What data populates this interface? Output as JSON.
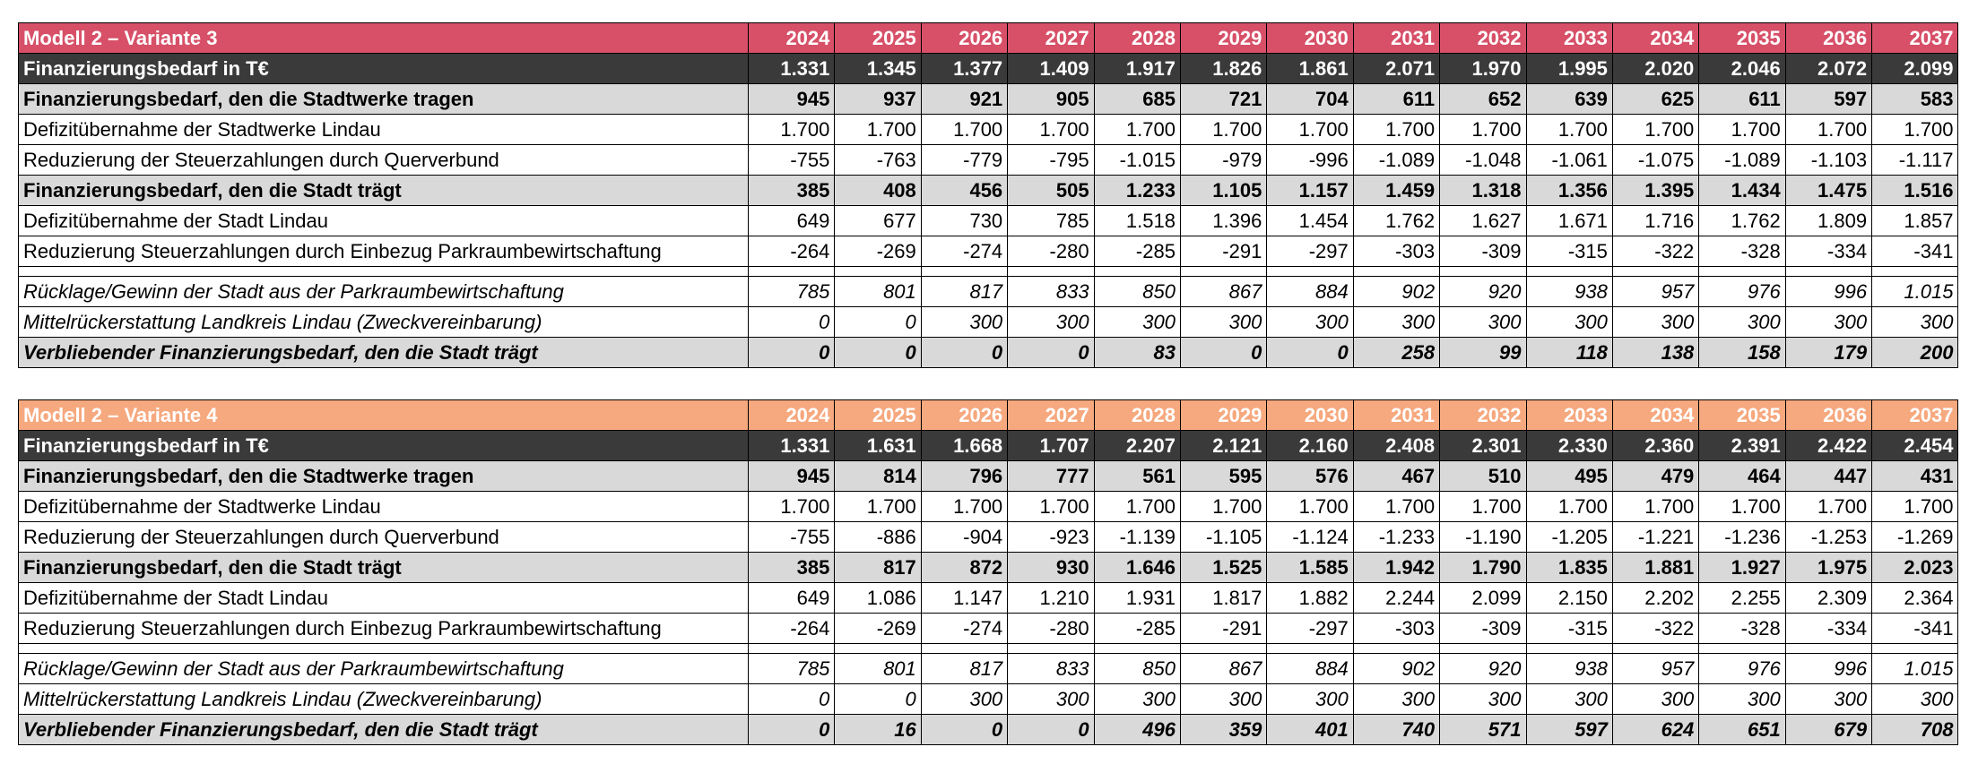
{
  "tables": [
    {
      "title": "Modell 2 – Variante 3",
      "years": [
        "2024",
        "2025",
        "2026",
        "2027",
        "2028",
        "2029",
        "2030",
        "2031",
        "2032",
        "2033",
        "2034",
        "2035",
        "2036",
        "2037"
      ],
      "rows": [
        {
          "type": "total",
          "label": "Finanzierungsbedarf in T€",
          "values": [
            "1.331",
            "1.345",
            "1.377",
            "1.409",
            "1.917",
            "1.826",
            "1.861",
            "2.071",
            "1.970",
            "1.995",
            "2.020",
            "2.046",
            "2.072",
            "2.099"
          ]
        },
        {
          "type": "sub",
          "label": "Finanzierungsbedarf, den die Stadtwerke tragen",
          "values": [
            "945",
            "937",
            "921",
            "905",
            "685",
            "721",
            "704",
            "611",
            "652",
            "639",
            "625",
            "611",
            "597",
            "583"
          ]
        },
        {
          "type": "plain",
          "label": "Defizitübernahme der Stadtwerke Lindau",
          "values": [
            "1.700",
            "1.700",
            "1.700",
            "1.700",
            "1.700",
            "1.700",
            "1.700",
            "1.700",
            "1.700",
            "1.700",
            "1.700",
            "1.700",
            "1.700",
            "1.700"
          ]
        },
        {
          "type": "plain",
          "label": "Reduzierung der Steuerzahlungen durch Querverbund",
          "values": [
            "-755",
            "-763",
            "-779",
            "-795",
            "-1.015",
            "-979",
            "-996",
            "-1.089",
            "-1.048",
            "-1.061",
            "-1.075",
            "-1.089",
            "-1.103",
            "-1.117"
          ]
        },
        {
          "type": "sub",
          "label": "Finanzierungsbedarf, den die Stadt trägt",
          "values": [
            "385",
            "408",
            "456",
            "505",
            "1.233",
            "1.105",
            "1.157",
            "1.459",
            "1.318",
            "1.356",
            "1.395",
            "1.434",
            "1.475",
            "1.516"
          ]
        },
        {
          "type": "plain",
          "label": "Defizitübernahme der Stadt Lindau",
          "values": [
            "649",
            "677",
            "730",
            "785",
            "1.518",
            "1.396",
            "1.454",
            "1.762",
            "1.627",
            "1.671",
            "1.716",
            "1.762",
            "1.809",
            "1.857"
          ]
        },
        {
          "type": "plain",
          "label": "Reduzierung Steuerzahlungen durch Einbezug Parkraumbewirtschaftung",
          "values": [
            "-264",
            "-269",
            "-274",
            "-280",
            "-285",
            "-291",
            "-297",
            "-303",
            "-309",
            "-315",
            "-322",
            "-328",
            "-334",
            "-341"
          ]
        },
        {
          "type": "gap",
          "label": "",
          "values": []
        },
        {
          "type": "ital",
          "label": "Rücklage/Gewinn der Stadt aus der Parkraumbewirtschaftung",
          "values": [
            "785",
            "801",
            "817",
            "833",
            "850",
            "867",
            "884",
            "902",
            "920",
            "938",
            "957",
            "976",
            "996",
            "1.015"
          ]
        },
        {
          "type": "ital",
          "label": "Mittelrückerstattung Landkreis Lindau (Zweckvereinbarung)",
          "values": [
            "0",
            "0",
            "300",
            "300",
            "300",
            "300",
            "300",
            "300",
            "300",
            "300",
            "300",
            "300",
            "300",
            "300"
          ]
        },
        {
          "type": "final",
          "label": "Verbliebender Finanzierungsbedarf, den die Stadt trägt",
          "values": [
            "0",
            "0",
            "0",
            "0",
            "83",
            "0",
            "0",
            "258",
            "99",
            "118",
            "138",
            "158",
            "179",
            "200"
          ]
        }
      ]
    },
    {
      "title": "Modell 2 – Variante 4",
      "years": [
        "2024",
        "2025",
        "2026",
        "2027",
        "2028",
        "2029",
        "2030",
        "2031",
        "2032",
        "2033",
        "2034",
        "2035",
        "2036",
        "2037"
      ],
      "rows": [
        {
          "type": "total",
          "label": "Finanzierungsbedarf in T€",
          "values": [
            "1.331",
            "1.631",
            "1.668",
            "1.707",
            "2.207",
            "2.121",
            "2.160",
            "2.408",
            "2.301",
            "2.330",
            "2.360",
            "2.391",
            "2.422",
            "2.454"
          ]
        },
        {
          "type": "sub",
          "label": "Finanzierungsbedarf, den die Stadtwerke tragen",
          "values": [
            "945",
            "814",
            "796",
            "777",
            "561",
            "595",
            "576",
            "467",
            "510",
            "495",
            "479",
            "464",
            "447",
            "431"
          ]
        },
        {
          "type": "plain",
          "label": "Defizitübernahme der Stadtwerke Lindau",
          "values": [
            "1.700",
            "1.700",
            "1.700",
            "1.700",
            "1.700",
            "1.700",
            "1.700",
            "1.700",
            "1.700",
            "1.700",
            "1.700",
            "1.700",
            "1.700",
            "1.700"
          ]
        },
        {
          "type": "plain",
          "label": "Reduzierung der Steuerzahlungen durch Querverbund",
          "values": [
            "-755",
            "-886",
            "-904",
            "-923",
            "-1.139",
            "-1.105",
            "-1.124",
            "-1.233",
            "-1.190",
            "-1.205",
            "-1.221",
            "-1.236",
            "-1.253",
            "-1.269"
          ]
        },
        {
          "type": "sub",
          "label": "Finanzierungsbedarf, den die Stadt trägt",
          "values": [
            "385",
            "817",
            "872",
            "930",
            "1.646",
            "1.525",
            "1.585",
            "1.942",
            "1.790",
            "1.835",
            "1.881",
            "1.927",
            "1.975",
            "2.023"
          ]
        },
        {
          "type": "plain",
          "label": "Defizitübernahme der Stadt Lindau",
          "values": [
            "649",
            "1.086",
            "1.147",
            "1.210",
            "1.931",
            "1.817",
            "1.882",
            "2.244",
            "2.099",
            "2.150",
            "2.202",
            "2.255",
            "2.309",
            "2.364"
          ]
        },
        {
          "type": "plain",
          "label": "Reduzierung Steuerzahlungen durch Einbezug Parkraumbewirtschaftung",
          "values": [
            "-264",
            "-269",
            "-274",
            "-280",
            "-285",
            "-291",
            "-297",
            "-303",
            "-309",
            "-315",
            "-322",
            "-328",
            "-334",
            "-341"
          ]
        },
        {
          "type": "gap",
          "label": "",
          "values": []
        },
        {
          "type": "ital",
          "label": "Rücklage/Gewinn der Stadt aus der Parkraumbewirtschaftung",
          "values": [
            "785",
            "801",
            "817",
            "833",
            "850",
            "867",
            "884",
            "902",
            "920",
            "938",
            "957",
            "976",
            "996",
            "1.015"
          ]
        },
        {
          "type": "ital",
          "label": "Mittelrückerstattung Landkreis Lindau (Zweckvereinbarung)",
          "values": [
            "0",
            "0",
            "300",
            "300",
            "300",
            "300",
            "300",
            "300",
            "300",
            "300",
            "300",
            "300",
            "300",
            "300"
          ]
        },
        {
          "type": "final",
          "label": "Verbliebender Finanzierungsbedarf, den die Stadt trägt",
          "values": [
            "0",
            "16",
            "0",
            "0",
            "496",
            "359",
            "401",
            "740",
            "571",
            "597",
            "624",
            "651",
            "679",
            "708"
          ]
        }
      ]
    }
  ]
}
